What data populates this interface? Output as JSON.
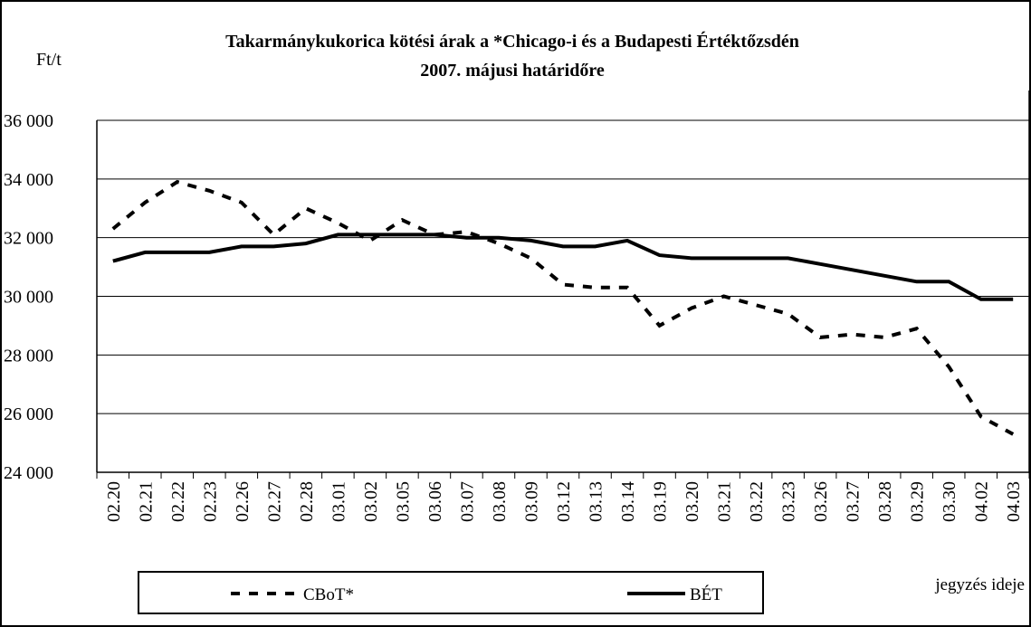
{
  "chart_data": {
    "type": "line",
    "title": [
      "Takarmánykukorica kötési árak a *Chicago-i és a Budapesti Értéktőzsdén",
      "2007. májusi határidőre"
    ],
    "y_label": "Ft/t",
    "x_label": "jegyzés ideje",
    "categories": [
      "02.20",
      "02.21",
      "02.22",
      "02.23",
      "02.26",
      "02.27",
      "02.28",
      "03.01",
      "03.02",
      "03.05",
      "03.06",
      "03.07",
      "03.08",
      "03.09",
      "03.12",
      "03.13",
      "03.14",
      "03.19",
      "03.20",
      "03.21",
      "03.22",
      "03.23",
      "03.26",
      "03.27",
      "03.28",
      "03.29",
      "03.30",
      "04.02",
      "04.03"
    ],
    "series": [
      {
        "name": "CBoT*",
        "color": "#000000",
        "dash": true,
        "values": [
          32300,
          33200,
          33900,
          33600,
          33200,
          32100,
          33000,
          32500,
          31900,
          32600,
          32100,
          32200,
          31800,
          31300,
          30400,
          30300,
          30300,
          29000,
          29600,
          30000,
          29700,
          29400,
          28600,
          28700,
          28600,
          28900,
          27600,
          25900,
          25300
        ]
      },
      {
        "name": "BÉT",
        "color": "#000000",
        "dash": false,
        "values": [
          31200,
          31500,
          31500,
          31500,
          31700,
          31700,
          31800,
          32100,
          32100,
          32100,
          32100,
          32000,
          32000,
          31900,
          31700,
          31700,
          31900,
          31400,
          31300,
          31300,
          31300,
          31300,
          31100,
          30900,
          30700,
          30500,
          30500,
          29900,
          29900
        ]
      }
    ],
    "ylim": [
      24000,
      36000
    ],
    "yticks": [
      {
        "value": 24000,
        "label": "24 000"
      },
      {
        "value": 26000,
        "label": "26 000"
      },
      {
        "value": 28000,
        "label": "28 000"
      },
      {
        "value": 30000,
        "label": "30 000"
      },
      {
        "value": 32000,
        "label": "32 000"
      },
      {
        "value": 34000,
        "label": "34 000"
      },
      {
        "value": 36000,
        "label": "36 000"
      }
    ],
    "grid": true
  }
}
